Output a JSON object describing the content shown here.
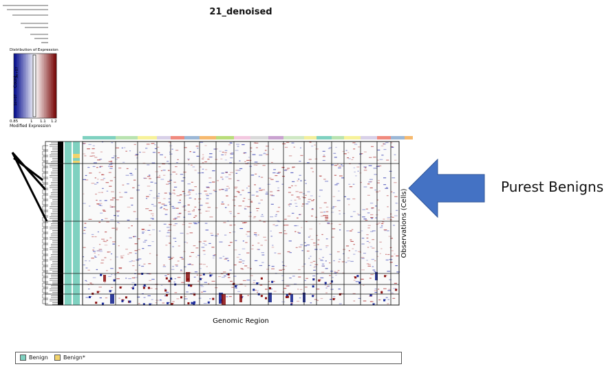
{
  "title": "21_denoised",
  "chart_data": {
    "type": "heatmap",
    "title": "21_denoised",
    "xlabel": "Genomic Region",
    "ylabel": "Observations (Cells)",
    "color_scale": {
      "title": "Distribution of Expression",
      "xlabel": "Modified Expression",
      "ylabel": "Count",
      "ticks": [
        "0.85",
        "1",
        "1.1",
        "1.2"
      ],
      "count_ticks": [
        "1e+07",
        "3e+07"
      ],
      "low_color": "#08108f",
      "mid_color": "#ffffff",
      "high_color": "#7a0a0a",
      "range": [
        0.85,
        1.2
      ]
    },
    "legend": [
      {
        "label": "Benign",
        "color": "#7fd1c0"
      },
      {
        "label": "Benign*",
        "color": "#f2d36b"
      }
    ],
    "chromosome_colors": [
      "#7fd1c0",
      "#b9e3b0",
      "#f7f29a",
      "#d8d0e8",
      "#f08a7e",
      "#9bb7d6",
      "#f6b96e",
      "#b9dd7a",
      "#f3c8e0",
      "#d9d9d9",
      "#c9a2d0",
      "#cfe8c4",
      "#f3ef9c"
    ],
    "subclusters": 6
  },
  "annotation": {
    "callout": "Purest Benigns",
    "arrow_color": "#4472c4"
  }
}
